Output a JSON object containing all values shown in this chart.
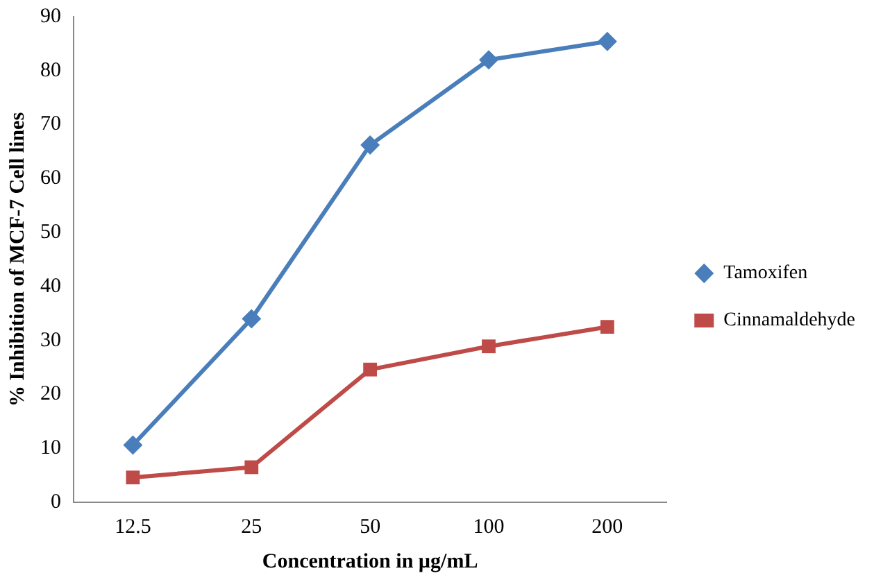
{
  "chart_data": {
    "type": "line",
    "xlabel": "Concentration in µg/mL",
    "ylabel": "% Inhibition of MCF-7 Cell lines",
    "categories": [
      "12.5",
      "25",
      "50",
      "100",
      "200"
    ],
    "series": [
      {
        "name": "Tamoxifen",
        "color": "#4a7ebb",
        "marker": "diamond",
        "values": [
          10.6,
          34.0,
          66.2,
          82.0,
          85.4
        ]
      },
      {
        "name": "Cinnamaldehyde",
        "color": "#be4b48",
        "marker": "square",
        "values": [
          4.6,
          6.5,
          24.6,
          28.9,
          32.5
        ]
      }
    ],
    "ylim": [
      0,
      90
    ],
    "yticks": [
      0,
      10,
      20,
      30,
      40,
      50,
      60,
      70,
      80,
      90
    ],
    "grid": false,
    "legend": "right",
    "line_style": "solid"
  }
}
